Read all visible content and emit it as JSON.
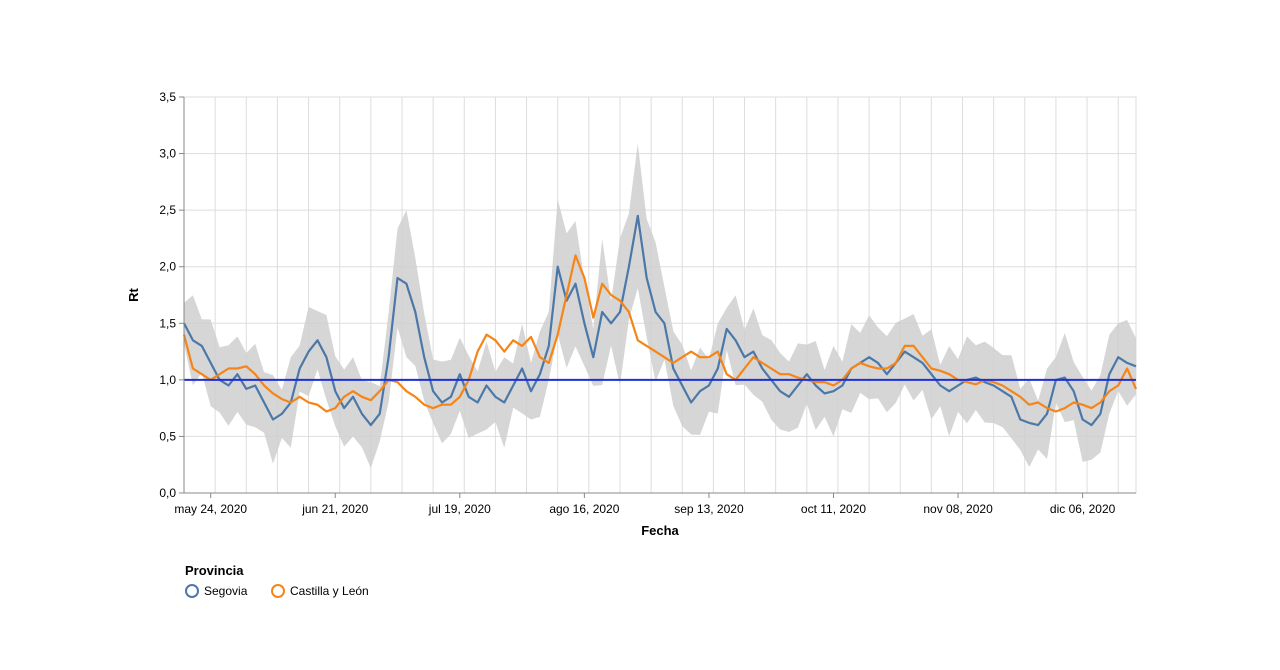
{
  "chart_data": {
    "type": "line",
    "xlabel": "Fecha",
    "ylabel": "Rt",
    "x_start": "2020-05-18",
    "x_end": "2020-12-18",
    "xlim": [
      "2020-05-18",
      "2020-12-18"
    ],
    "ylim": [
      0,
      3.5
    ],
    "grid": true,
    "y_ticks": [
      "0,0",
      "0,5",
      "1,0",
      "1,5",
      "2,0",
      "2,5",
      "3,0",
      "3,5"
    ],
    "x_ticks": [
      {
        "date": "2020-05-24",
        "label": "may 24, 2020"
      },
      {
        "date": "2020-06-21",
        "label": "jun 21, 2020"
      },
      {
        "date": "2020-07-19",
        "label": "jul 19, 2020"
      },
      {
        "date": "2020-08-16",
        "label": "ago 16, 2020"
      },
      {
        "date": "2020-09-13",
        "label": "sep 13, 2020"
      },
      {
        "date": "2020-10-11",
        "label": "oct 11, 2020"
      },
      {
        "date": "2020-11-08",
        "label": "nov 08, 2020"
      },
      {
        "date": "2020-12-06",
        "label": "dic 06, 2020"
      }
    ],
    "reference_line": {
      "y": 1.0,
      "color": "#1f2fd6"
    },
    "legend": {
      "title": "Provincia",
      "position": "bottom-left"
    },
    "series": [
      {
        "name": "Segovia",
        "color": "#4c78a8",
        "points": [
          [
            "2020-05-18",
            1.5
          ],
          [
            "2020-05-20",
            1.35
          ],
          [
            "2020-05-22",
            1.3
          ],
          [
            "2020-05-24",
            1.15
          ],
          [
            "2020-05-26",
            1.0
          ],
          [
            "2020-05-28",
            0.95
          ],
          [
            "2020-05-30",
            1.05
          ],
          [
            "2020-06-01",
            0.92
          ],
          [
            "2020-06-03",
            0.95
          ],
          [
            "2020-06-05",
            0.8
          ],
          [
            "2020-06-07",
            0.65
          ],
          [
            "2020-06-09",
            0.7
          ],
          [
            "2020-06-11",
            0.8
          ],
          [
            "2020-06-13",
            1.1
          ],
          [
            "2020-06-15",
            1.25
          ],
          [
            "2020-06-17",
            1.35
          ],
          [
            "2020-06-19",
            1.2
          ],
          [
            "2020-06-21",
            0.9
          ],
          [
            "2020-06-23",
            0.75
          ],
          [
            "2020-06-25",
            0.85
          ],
          [
            "2020-06-27",
            0.7
          ],
          [
            "2020-06-29",
            0.6
          ],
          [
            "2020-07-01",
            0.7
          ],
          [
            "2020-07-03",
            1.2
          ],
          [
            "2020-07-05",
            1.9
          ],
          [
            "2020-07-07",
            1.85
          ],
          [
            "2020-07-09",
            1.6
          ],
          [
            "2020-07-11",
            1.2
          ],
          [
            "2020-07-13",
            0.9
          ],
          [
            "2020-07-15",
            0.8
          ],
          [
            "2020-07-17",
            0.85
          ],
          [
            "2020-07-19",
            1.05
          ],
          [
            "2020-07-21",
            0.85
          ],
          [
            "2020-07-23",
            0.8
          ],
          [
            "2020-07-25",
            0.95
          ],
          [
            "2020-07-27",
            0.85
          ],
          [
            "2020-07-29",
            0.8
          ],
          [
            "2020-07-31",
            0.95
          ],
          [
            "2020-08-02",
            1.1
          ],
          [
            "2020-08-04",
            0.9
          ],
          [
            "2020-08-06",
            1.05
          ],
          [
            "2020-08-08",
            1.3
          ],
          [
            "2020-08-10",
            2.0
          ],
          [
            "2020-08-12",
            1.7
          ],
          [
            "2020-08-14",
            1.85
          ],
          [
            "2020-08-16",
            1.5
          ],
          [
            "2020-08-18",
            1.2
          ],
          [
            "2020-08-20",
            1.6
          ],
          [
            "2020-08-22",
            1.5
          ],
          [
            "2020-08-24",
            1.6
          ],
          [
            "2020-08-26",
            2.0
          ],
          [
            "2020-08-28",
            2.45
          ],
          [
            "2020-08-30",
            1.9
          ],
          [
            "2020-09-01",
            1.6
          ],
          [
            "2020-09-03",
            1.5
          ],
          [
            "2020-09-05",
            1.1
          ],
          [
            "2020-09-07",
            0.95
          ],
          [
            "2020-09-09",
            0.8
          ],
          [
            "2020-09-11",
            0.9
          ],
          [
            "2020-09-13",
            0.95
          ],
          [
            "2020-09-15",
            1.1
          ],
          [
            "2020-09-17",
            1.45
          ],
          [
            "2020-09-19",
            1.35
          ],
          [
            "2020-09-21",
            1.2
          ],
          [
            "2020-09-23",
            1.25
          ],
          [
            "2020-09-25",
            1.1
          ],
          [
            "2020-09-27",
            1.0
          ],
          [
            "2020-09-29",
            0.9
          ],
          [
            "2020-10-01",
            0.85
          ],
          [
            "2020-10-03",
            0.95
          ],
          [
            "2020-10-05",
            1.05
          ],
          [
            "2020-10-07",
            0.95
          ],
          [
            "2020-10-09",
            0.88
          ],
          [
            "2020-10-11",
            0.9
          ],
          [
            "2020-10-13",
            0.95
          ],
          [
            "2020-10-15",
            1.1
          ],
          [
            "2020-10-17",
            1.15
          ],
          [
            "2020-10-19",
            1.2
          ],
          [
            "2020-10-21",
            1.15
          ],
          [
            "2020-10-23",
            1.05
          ],
          [
            "2020-10-25",
            1.15
          ],
          [
            "2020-10-27",
            1.25
          ],
          [
            "2020-10-29",
            1.2
          ],
          [
            "2020-10-31",
            1.15
          ],
          [
            "2020-11-02",
            1.05
          ],
          [
            "2020-11-04",
            0.95
          ],
          [
            "2020-11-06",
            0.9
          ],
          [
            "2020-11-08",
            0.95
          ],
          [
            "2020-11-10",
            1.0
          ],
          [
            "2020-11-12",
            1.02
          ],
          [
            "2020-11-14",
            0.98
          ],
          [
            "2020-11-16",
            0.95
          ],
          [
            "2020-11-18",
            0.9
          ],
          [
            "2020-11-20",
            0.85
          ],
          [
            "2020-11-22",
            0.65
          ],
          [
            "2020-11-24",
            0.62
          ],
          [
            "2020-11-26",
            0.6
          ],
          [
            "2020-11-28",
            0.7
          ],
          [
            "2020-11-30",
            1.0
          ],
          [
            "2020-12-02",
            1.02
          ],
          [
            "2020-12-04",
            0.9
          ],
          [
            "2020-12-06",
            0.65
          ],
          [
            "2020-12-08",
            0.6
          ],
          [
            "2020-12-10",
            0.7
          ],
          [
            "2020-12-12",
            1.05
          ],
          [
            "2020-12-14",
            1.2
          ],
          [
            "2020-12-16",
            1.15
          ],
          [
            "2020-12-18",
            1.12
          ]
        ]
      },
      {
        "name": "Castilla y León",
        "color": "#f58518",
        "points": [
          [
            "2020-05-18",
            1.4
          ],
          [
            "2020-05-20",
            1.1
          ],
          [
            "2020-05-22",
            1.05
          ],
          [
            "2020-05-24",
            1.0
          ],
          [
            "2020-05-26",
            1.05
          ],
          [
            "2020-05-28",
            1.1
          ],
          [
            "2020-05-30",
            1.1
          ],
          [
            "2020-06-01",
            1.12
          ],
          [
            "2020-06-03",
            1.05
          ],
          [
            "2020-06-05",
            0.95
          ],
          [
            "2020-06-07",
            0.88
          ],
          [
            "2020-06-09",
            0.83
          ],
          [
            "2020-06-11",
            0.8
          ],
          [
            "2020-06-13",
            0.85
          ],
          [
            "2020-06-15",
            0.8
          ],
          [
            "2020-06-17",
            0.78
          ],
          [
            "2020-06-19",
            0.72
          ],
          [
            "2020-06-21",
            0.75
          ],
          [
            "2020-06-23",
            0.85
          ],
          [
            "2020-06-25",
            0.9
          ],
          [
            "2020-06-27",
            0.85
          ],
          [
            "2020-06-29",
            0.82
          ],
          [
            "2020-07-01",
            0.9
          ],
          [
            "2020-07-03",
            1.0
          ],
          [
            "2020-07-05",
            0.98
          ],
          [
            "2020-07-07",
            0.9
          ],
          [
            "2020-07-09",
            0.85
          ],
          [
            "2020-07-11",
            0.78
          ],
          [
            "2020-07-13",
            0.75
          ],
          [
            "2020-07-15",
            0.78
          ],
          [
            "2020-07-17",
            0.78
          ],
          [
            "2020-07-19",
            0.85
          ],
          [
            "2020-07-21",
            1.0
          ],
          [
            "2020-07-23",
            1.25
          ],
          [
            "2020-07-25",
            1.4
          ],
          [
            "2020-07-27",
            1.35
          ],
          [
            "2020-07-29",
            1.25
          ],
          [
            "2020-07-31",
            1.35
          ],
          [
            "2020-08-02",
            1.3
          ],
          [
            "2020-08-04",
            1.38
          ],
          [
            "2020-08-06",
            1.2
          ],
          [
            "2020-08-08",
            1.15
          ],
          [
            "2020-08-10",
            1.4
          ],
          [
            "2020-08-12",
            1.75
          ],
          [
            "2020-08-14",
            2.1
          ],
          [
            "2020-08-16",
            1.9
          ],
          [
            "2020-08-18",
            1.55
          ],
          [
            "2020-08-20",
            1.85
          ],
          [
            "2020-08-22",
            1.75
          ],
          [
            "2020-08-24",
            1.7
          ],
          [
            "2020-08-26",
            1.6
          ],
          [
            "2020-08-28",
            1.35
          ],
          [
            "2020-08-30",
            1.3
          ],
          [
            "2020-09-01",
            1.25
          ],
          [
            "2020-09-03",
            1.2
          ],
          [
            "2020-09-05",
            1.15
          ],
          [
            "2020-09-07",
            1.2
          ],
          [
            "2020-09-09",
            1.25
          ],
          [
            "2020-09-11",
            1.2
          ],
          [
            "2020-09-13",
            1.2
          ],
          [
            "2020-09-15",
            1.25
          ],
          [
            "2020-09-17",
            1.05
          ],
          [
            "2020-09-19",
            1.0
          ],
          [
            "2020-09-21",
            1.1
          ],
          [
            "2020-09-23",
            1.2
          ],
          [
            "2020-09-25",
            1.15
          ],
          [
            "2020-09-27",
            1.1
          ],
          [
            "2020-09-29",
            1.05
          ],
          [
            "2020-10-01",
            1.05
          ],
          [
            "2020-10-03",
            1.02
          ],
          [
            "2020-10-05",
            1.0
          ],
          [
            "2020-10-07",
            0.98
          ],
          [
            "2020-10-09",
            0.98
          ],
          [
            "2020-10-11",
            0.95
          ],
          [
            "2020-10-13",
            1.0
          ],
          [
            "2020-10-15",
            1.1
          ],
          [
            "2020-10-17",
            1.15
          ],
          [
            "2020-10-19",
            1.12
          ],
          [
            "2020-10-21",
            1.1
          ],
          [
            "2020-10-23",
            1.1
          ],
          [
            "2020-10-25",
            1.15
          ],
          [
            "2020-10-27",
            1.3
          ],
          [
            "2020-10-29",
            1.3
          ],
          [
            "2020-10-31",
            1.2
          ],
          [
            "2020-11-02",
            1.1
          ],
          [
            "2020-11-04",
            1.08
          ],
          [
            "2020-11-06",
            1.05
          ],
          [
            "2020-11-08",
            1.0
          ],
          [
            "2020-11-10",
            0.98
          ],
          [
            "2020-11-12",
            0.96
          ],
          [
            "2020-11-14",
            1.0
          ],
          [
            "2020-11-16",
            0.98
          ],
          [
            "2020-11-18",
            0.95
          ],
          [
            "2020-11-20",
            0.9
          ],
          [
            "2020-11-22",
            0.85
          ],
          [
            "2020-11-24",
            0.78
          ],
          [
            "2020-11-26",
            0.8
          ],
          [
            "2020-11-28",
            0.75
          ],
          [
            "2020-11-30",
            0.72
          ],
          [
            "2020-12-02",
            0.75
          ],
          [
            "2020-12-04",
            0.8
          ],
          [
            "2020-12-06",
            0.78
          ],
          [
            "2020-12-08",
            0.75
          ],
          [
            "2020-12-10",
            0.8
          ],
          [
            "2020-12-12",
            0.9
          ],
          [
            "2020-12-14",
            0.95
          ],
          [
            "2020-12-16",
            1.1
          ],
          [
            "2020-12-18",
            0.92
          ]
        ]
      }
    ]
  }
}
